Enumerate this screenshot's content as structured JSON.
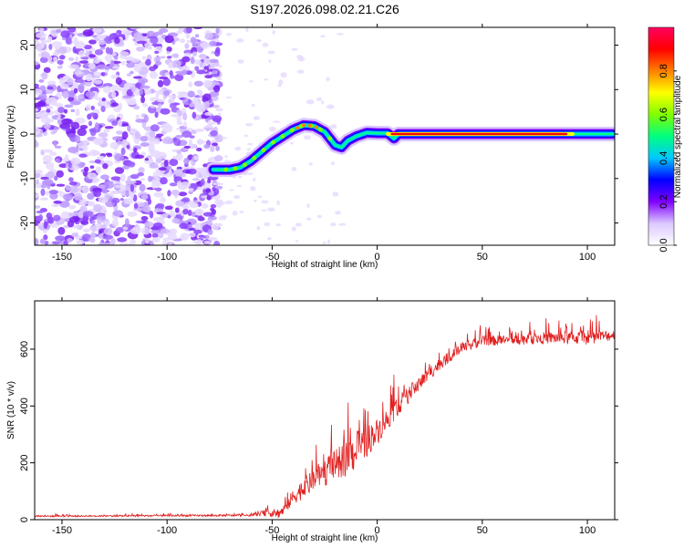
{
  "chart_data": [
    {
      "type": "heatmap",
      "title": "S197.2026.098.02.21.C26",
      "xlabel": "Height of straight line (km)",
      "ylabel": "Frequency (Hz)",
      "xlim": [
        -163,
        113
      ],
      "ylim": [
        -25,
        24
      ],
      "xticks": [
        -150,
        -100,
        -50,
        0,
        50,
        100
      ],
      "yticks": [
        -20,
        -10,
        0,
        10,
        20
      ],
      "ridge": {
        "x": [
          -78,
          -70,
          -65,
          -60,
          -55,
          -50,
          -45,
          -40,
          -35,
          -30,
          -25,
          -20,
          -17,
          -14,
          -10,
          -5,
          0,
          5,
          8,
          10,
          20,
          40,
          60,
          80,
          100,
          112
        ],
        "freq": [
          -8,
          -8,
          -7.5,
          -6,
          -4,
          -2,
          -0.5,
          1,
          2,
          1.8,
          0.5,
          -2.5,
          -3,
          -1.5,
          -0.5,
          0.3,
          0.2,
          0.2,
          -1,
          0,
          0,
          0,
          0,
          0,
          0,
          0
        ],
        "peak_x_range": [
          5,
          93
        ]
      },
      "noise_region_x": [
        -163,
        -75
      ],
      "colorbar": {
        "label": "Normalized spectral amplitude",
        "ticks": [
          0.0,
          0.2,
          0.4,
          0.6,
          0.8
        ],
        "tick_labels": [
          "0.0",
          "0.2",
          "0.4",
          "0.6",
          "0.8"
        ],
        "colors": [
          "#ffffff",
          "#dcc8ff",
          "#8000ff",
          "#0000ff",
          "#00c8ff",
          "#00ff80",
          "#80ff00",
          "#ffff00",
          "#ff8000",
          "#ff0000",
          "#ff0060"
        ]
      }
    },
    {
      "type": "line",
      "xlabel": "Height of straight line (km)",
      "ylabel": "SNR (10 * v/v)",
      "xlim": [
        -163,
        113
      ],
      "ylim": [
        0,
        770
      ],
      "xticks": [
        -150,
        -100,
        -50,
        0,
        50,
        100
      ],
      "yticks": [
        0,
        200,
        400,
        600
      ],
      "color": "#e02020",
      "envelope": {
        "x": [
          -163,
          -60,
          -52,
          -48,
          -45,
          -40,
          -30,
          -20,
          -10,
          0,
          10,
          20,
          30,
          40,
          50,
          60,
          80,
          100,
          113
        ],
        "base": [
          12,
          15,
          25,
          20,
          30,
          80,
          140,
          190,
          240,
          310,
          400,
          480,
          550,
          600,
          630,
          630,
          640,
          640,
          650
        ],
        "amp": [
          8,
          12,
          40,
          60,
          60,
          90,
          150,
          180,
          230,
          150,
          110,
          90,
          70,
          60,
          60,
          60,
          70,
          80,
          60
        ]
      }
    }
  ]
}
